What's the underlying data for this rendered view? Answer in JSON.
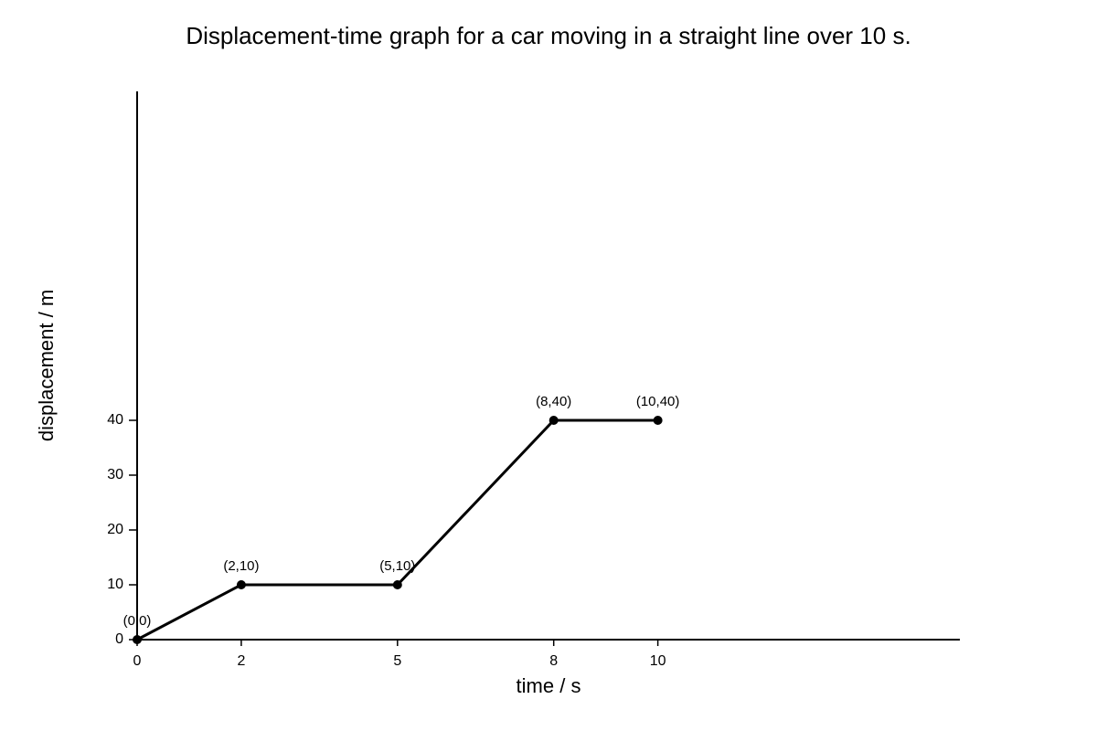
{
  "chart_data": {
    "type": "line",
    "title": "Displacement-time graph for a car moving in a straight line over 10 s.",
    "xlabel": "time / s",
    "ylabel": "displacement / m",
    "x": [
      0,
      2,
      5,
      8,
      10
    ],
    "series": [
      {
        "name": "displacement",
        "color": "#000000",
        "values": [
          0,
          10,
          10,
          40,
          40
        ],
        "value_labels": [
          "(0,0)",
          "(2,10)",
          "(5,10)",
          "(8,40)",
          "(10,40)"
        ]
      }
    ],
    "xlim": [
      0,
      15.8
    ],
    "ylim": [
      0,
      100
    ],
    "xticks": [
      0,
      2,
      5,
      8,
      10
    ],
    "yticks": [
      0,
      10,
      20,
      30,
      40
    ],
    "grid": false
  }
}
